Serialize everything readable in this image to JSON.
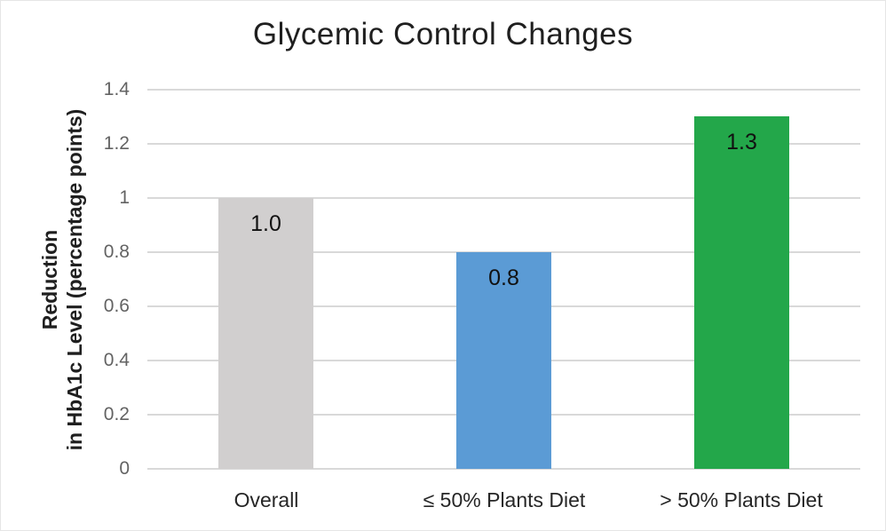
{
  "figure": {
    "background": "#ffffff",
    "border_color": "#e6e6e6"
  },
  "chart_data": {
    "type": "bar",
    "title": "Glycemic Control Changes",
    "ylabel_lines": [
      "Reduction",
      "in HbA1c Level (percentage points)"
    ],
    "xlabel": "",
    "categories": [
      "Overall",
      "≤ 50% Plants Diet",
      "> 50% Plants Diet"
    ],
    "values": [
      1.0,
      0.8,
      1.3
    ],
    "value_labels": [
      "1.0",
      "0.8",
      "1.3"
    ],
    "bar_colors": [
      "#d1cfcf",
      "#5b9bd5",
      "#23a74a"
    ],
    "ylim": [
      0,
      1.4
    ],
    "yticks": [
      0,
      0.2,
      0.4,
      0.6,
      0.8,
      1,
      1.2,
      1.4
    ],
    "ytick_labels": [
      "0",
      "0.2",
      "0.4",
      "0.6",
      "0.8",
      "1",
      "1.2",
      "1.4"
    ],
    "grid": true,
    "legend": "none",
    "gridline_color": "#d9d9d9",
    "tick_label_color": "#636363",
    "text_color": "#1f1f1f"
  }
}
